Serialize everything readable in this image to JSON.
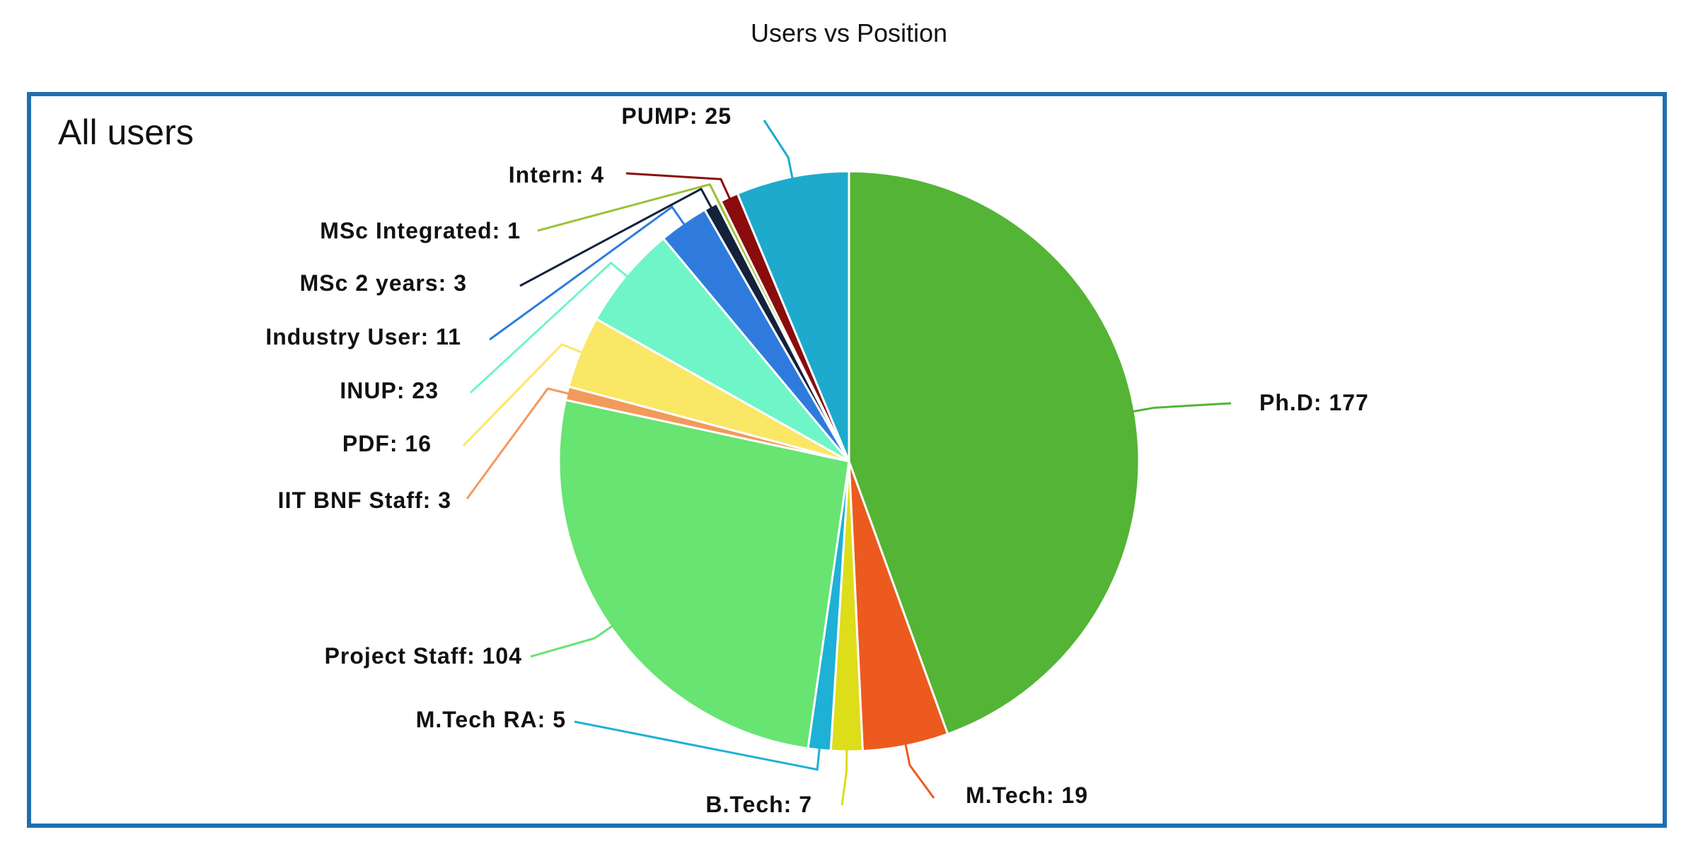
{
  "chart_data": {
    "type": "pie",
    "title": "Users vs Position",
    "panel_label": "All users",
    "slices": [
      {
        "label": "Ph.D",
        "value": 177,
        "color": "#54b435"
      },
      {
        "label": "M.Tech",
        "value": 19,
        "color": "#ec5a1f"
      },
      {
        "label": "B.Tech",
        "value": 7,
        "color": "#dddd1a"
      },
      {
        "label": "M.Tech RA",
        "value": 5,
        "color": "#1fb0d6"
      },
      {
        "label": "Project Staff",
        "value": 104,
        "color": "#67e472"
      },
      {
        "label": "IIT BNF Staff",
        "value": 3,
        "color": "#f29a5c"
      },
      {
        "label": "PDF",
        "value": 16,
        "color": "#fae766"
      },
      {
        "label": "INUP",
        "value": 23,
        "color": "#6ff5c8"
      },
      {
        "label": "Industry User",
        "value": 11,
        "color": "#2f7bdd"
      },
      {
        "label": "MSc 2 years",
        "value": 3,
        "color": "#13223a"
      },
      {
        "label": "MSc Integrated",
        "value": 1,
        "color": "#9bc13a"
      },
      {
        "label": "Intern",
        "value": 4,
        "color": "#8a0c0c"
      },
      {
        "label": "PUMP",
        "value": 25,
        "color": "#1eaacd"
      }
    ],
    "frame_color": "#1f6fb0"
  }
}
